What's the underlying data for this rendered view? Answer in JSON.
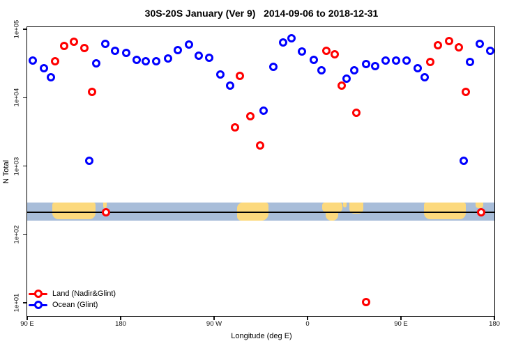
{
  "chart_data": {
    "type": "scatter",
    "title": "30S-20S January (Ver 9)   2014-09-06 to 2018-12-31",
    "xlabel": "Longitude (deg E)",
    "ylabel": "N Total",
    "x_axis": {
      "start_lon": 90,
      "end_lon": 540,
      "note_labels_wrap": "longitude axis spans 90E eastward around globe to 180"
    },
    "y_axis": {
      "scale": "log10",
      "min": 10,
      "max": 100000
    },
    "x_ticks": [
      {
        "lon": 90,
        "label": "90 E"
      },
      {
        "lon": 180,
        "label": "180"
      },
      {
        "lon": 270,
        "label": "90 W"
      },
      {
        "lon": 360,
        "label": "0"
      },
      {
        "lon": 450,
        "label": "90 E"
      },
      {
        "lon": 540,
        "label": "180"
      }
    ],
    "y_ticks": [
      {
        "exp": 1,
        "label": "1e+01"
      },
      {
        "exp": 2,
        "label": "1e+02"
      },
      {
        "exp": 3,
        "label": "1e+03"
      },
      {
        "exp": 4,
        "label": "1e+04"
      },
      {
        "exp": 5,
        "label": "1e+05"
      }
    ],
    "series": [
      {
        "name": "Land (Nadir&Glint)",
        "color": "#ff0000",
        "marker": "open-circle",
        "points": [
          {
            "lon": 116.9,
            "n": 34000
          },
          {
            "lon": 125.6,
            "n": 57000
          },
          {
            "lon": 135.0,
            "n": 66000
          },
          {
            "lon": 145.1,
            "n": 53000
          },
          {
            "lon": 152.5,
            "n": 12000
          },
          {
            "lon": 165.9,
            "n": 210
          },
          {
            "lon": 290.2,
            "n": 3700
          },
          {
            "lon": 294.9,
            "n": 21000
          },
          {
            "lon": 304.9,
            "n": 5300
          },
          {
            "lon": 314.3,
            "n": 2000
          },
          {
            "lon": 378.1,
            "n": 48000
          },
          {
            "lon": 386.2,
            "n": 43000
          },
          {
            "lon": 392.9,
            "n": 15000
          },
          {
            "lon": 407.0,
            "n": 6000
          },
          {
            "lon": 416.4,
            "n": 10.2
          },
          {
            "lon": 478.2,
            "n": 33000
          },
          {
            "lon": 485.6,
            "n": 58000
          },
          {
            "lon": 496.3,
            "n": 67000
          },
          {
            "lon": 505.7,
            "n": 54000
          },
          {
            "lon": 512.4,
            "n": 12000
          },
          {
            "lon": 527.2,
            "n": 210
          }
        ]
      },
      {
        "name": "Ocean (Glint)",
        "color": "#0000ff",
        "marker": "open-circle",
        "points": [
          {
            "lon": 95.4,
            "n": 35000
          },
          {
            "lon": 106.1,
            "n": 27000
          },
          {
            "lon": 112.8,
            "n": 20000
          },
          {
            "lon": 149.8,
            "n": 1200
          },
          {
            "lon": 156.5,
            "n": 32000
          },
          {
            "lon": 165.2,
            "n": 61000
          },
          {
            "lon": 174.6,
            "n": 48000
          },
          {
            "lon": 185.4,
            "n": 45000
          },
          {
            "lon": 195.4,
            "n": 36000
          },
          {
            "lon": 204.2,
            "n": 34000
          },
          {
            "lon": 214.2,
            "n": 34000
          },
          {
            "lon": 225.7,
            "n": 37000
          },
          {
            "lon": 235.1,
            "n": 50000
          },
          {
            "lon": 245.8,
            "n": 60000
          },
          {
            "lon": 255.2,
            "n": 41000
          },
          {
            "lon": 265.3,
            "n": 38000
          },
          {
            "lon": 276.0,
            "n": 22000
          },
          {
            "lon": 285.4,
            "n": 15000
          },
          {
            "lon": 317.7,
            "n": 6400
          },
          {
            "lon": 327.1,
            "n": 28000
          },
          {
            "lon": 336.5,
            "n": 64000
          },
          {
            "lon": 344.5,
            "n": 74000
          },
          {
            "lon": 354.6,
            "n": 47000
          },
          {
            "lon": 366.0,
            "n": 36000
          },
          {
            "lon": 373.4,
            "n": 25000
          },
          {
            "lon": 397.6,
            "n": 19000
          },
          {
            "lon": 405.0,
            "n": 25000
          },
          {
            "lon": 416.4,
            "n": 31000
          },
          {
            "lon": 425.1,
            "n": 29000
          },
          {
            "lon": 435.2,
            "n": 35000
          },
          {
            "lon": 445.3,
            "n": 35000
          },
          {
            "lon": 455.3,
            "n": 35000
          },
          {
            "lon": 466.1,
            "n": 27000
          },
          {
            "lon": 472.8,
            "n": 20000
          },
          {
            "lon": 510.4,
            "n": 1200
          },
          {
            "lon": 516.4,
            "n": 33000
          },
          {
            "lon": 525.8,
            "n": 61000
          },
          {
            "lon": 535.9,
            "n": 48000
          }
        ]
      }
    ],
    "land_ocean_band": {
      "description": "land/ocean mask strip across all longitudes",
      "n_top": 290,
      "n_bottom": 160,
      "n_line": 210,
      "ocean_color": "#a8bdd9",
      "land_color": "#fcd97d",
      "line_color": "#000000",
      "land_segments": [
        {
          "lon0": 114.0,
          "lon1": 156.0,
          "top": 0,
          "bottom": 0.92,
          "radius": "3px 3px 9px 9px"
        },
        {
          "lon0": 163.5,
          "lon1": 166.8,
          "top": 0,
          "bottom": 0.3,
          "radius": "0 0 4px 4px"
        },
        {
          "lon0": 292.0,
          "lon1": 322.5,
          "top": 0,
          "bottom": 1.0,
          "radius": "8px 4px 10px 6px"
        },
        {
          "lon0": 374.0,
          "lon1": 393.5,
          "top": 0,
          "bottom": 0.55,
          "radius": "4px 4px 6px 6px"
        },
        {
          "lon0": 377.5,
          "lon1": 389.5,
          "top": 0.3,
          "bottom": 1.0,
          "radius": "0 0 8px 8px"
        },
        {
          "lon0": 394.5,
          "lon1": 397.5,
          "top": 0,
          "bottom": 0.25,
          "radius": "0 0 3px 3px"
        },
        {
          "lon0": 400.5,
          "lon1": 414.0,
          "top": 0,
          "bottom": 0.62,
          "radius": "0 0 7px 7px"
        },
        {
          "lon0": 472.0,
          "lon1": 512.5,
          "top": 0,
          "bottom": 0.92,
          "radius": "3px 3px 9px 9px"
        },
        {
          "lon0": 522.0,
          "lon1": 529.5,
          "top": 0,
          "bottom": 0.3,
          "radius": "0 0 4px 4px"
        }
      ]
    },
    "legend_position": "bottom-left"
  }
}
